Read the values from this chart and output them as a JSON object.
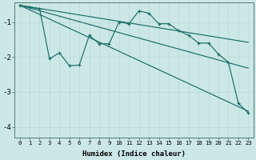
{
  "xlabel": "Humidex (Indice chaleur)",
  "bg_color": "#cce8e6",
  "grid_color_major": "#b8d8d4",
  "grid_color_minor": "#d0e8e6",
  "line_color": "#1a6e68",
  "xlim": [
    -0.5,
    23.5
  ],
  "ylim": [
    -4.3,
    -0.45
  ],
  "yticks": [
    -4,
    -3,
    -2,
    -1
  ],
  "trend1_x": [
    0,
    23
  ],
  "trend1_y": [
    -0.52,
    -1.58
  ],
  "trend2_x": [
    0,
    23
  ],
  "trend2_y": [
    -0.52,
    -2.32
  ],
  "trend3_x": [
    0,
    23
  ],
  "trend3_y": [
    -0.52,
    -3.55
  ],
  "data_x": [
    0,
    1,
    2,
    3,
    4,
    5,
    6,
    7,
    8,
    9,
    10,
    11,
    12,
    13,
    14,
    15,
    16,
    17,
    18,
    19,
    20,
    21,
    22,
    23
  ],
  "data_y": [
    -0.52,
    -0.58,
    -0.62,
    -2.05,
    -1.88,
    -2.25,
    -2.23,
    -1.38,
    -1.62,
    -1.62,
    -1.0,
    -1.05,
    -0.68,
    -0.75,
    -1.05,
    -1.05,
    -1.25,
    -1.38,
    -1.6,
    -1.6,
    -1.92,
    -2.15,
    -3.32,
    -3.6
  ],
  "marker_x": [
    0,
    1,
    2,
    3,
    4,
    5,
    6,
    7,
    8,
    9,
    10,
    11,
    12,
    13,
    14,
    15,
    16,
    17,
    18,
    19,
    20,
    21,
    22,
    23
  ],
  "figwidth": 3.2,
  "figheight": 2.0,
  "dpi": 100
}
